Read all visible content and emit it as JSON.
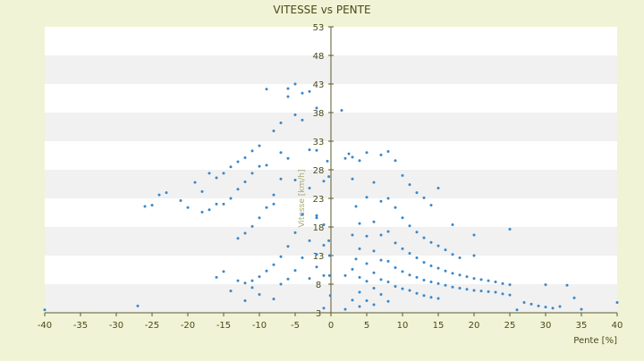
{
  "chart_data": {
    "type": "scatter",
    "title": "VITESSE vs PENTE",
    "xlabel": "Pente [%]",
    "ylabel": "Vitesse [km/h]",
    "xlim": [
      -40,
      40
    ],
    "ylim": [
      3,
      53
    ],
    "x_ticks": [
      -40,
      -35,
      -30,
      -25,
      -20,
      -15,
      -10,
      -5,
      0,
      5,
      10,
      15,
      20,
      25,
      30,
      35,
      40
    ],
    "y_ticks": [
      3,
      8,
      13,
      18,
      23,
      28,
      33,
      38,
      43,
      48,
      53
    ],
    "grid": "horizontal alternating bands",
    "legend": "none",
    "colors": {
      "background": "#f0f3d5",
      "plot_band_light": "#ffffff",
      "plot_band_dark": "#f1f1f1",
      "series": "#3a87c8",
      "text": "#4a4a18",
      "axis": "#5a5a2a"
    },
    "series": [
      {
        "points": [
          [
            -40,
            3.5
          ],
          [
            -27,
            4.2
          ],
          [
            -26,
            21.6
          ],
          [
            -25,
            21.8
          ],
          [
            -24,
            23.6
          ],
          [
            -23,
            24.0
          ],
          [
            -21,
            22.6
          ],
          [
            -20,
            21.4
          ],
          [
            -19,
            25.8
          ],
          [
            -18,
            24.2
          ],
          [
            -18,
            20.6
          ],
          [
            -17,
            27.4
          ],
          [
            -17,
            21.0
          ],
          [
            -16,
            26.6
          ],
          [
            -16,
            9.2
          ],
          [
            -15,
            10.2
          ],
          [
            -15,
            27.4
          ],
          [
            -14,
            28.5
          ],
          [
            -14,
            6.8
          ],
          [
            -13,
            29.4
          ],
          [
            -13,
            8.6
          ],
          [
            -12,
            30.1
          ],
          [
            -12,
            5.1
          ],
          [
            -11,
            31.3
          ],
          [
            -11,
            7.4
          ],
          [
            -10,
            32.2
          ],
          [
            -10,
            6.2
          ],
          [
            -9,
            42.1
          ],
          [
            -9,
            28.8
          ],
          [
            -8,
            34.8
          ],
          [
            -8,
            22.0
          ],
          [
            -8,
            5.4
          ],
          [
            -7,
            36.2
          ],
          [
            -7,
            31.0
          ],
          [
            -6,
            42.2
          ],
          [
            -6,
            40.8
          ],
          [
            -5,
            43.0
          ],
          [
            -5,
            37.6
          ],
          [
            -5,
            26.2
          ],
          [
            -4,
            41.4
          ],
          [
            -4,
            36.7
          ],
          [
            -3,
            41.7
          ],
          [
            -3,
            31.5
          ],
          [
            -2,
            38.8
          ],
          [
            -2,
            20.0
          ],
          [
            -2,
            13.2
          ],
          [
            -1,
            9.5
          ],
          [
            -1,
            3.8
          ],
          [
            -0.5,
            29.5
          ],
          [
            -0.3,
            26.8
          ],
          [
            -0.3,
            15.6
          ],
          [
            -0.2,
            13.0
          ],
          [
            -0.2,
            9.5
          ],
          [
            -0.1,
            6.0
          ],
          [
            -16,
            22.0
          ],
          [
            -15,
            22.0
          ],
          [
            -14,
            23.0
          ],
          [
            -13,
            24.6
          ],
          [
            -12,
            25.9
          ],
          [
            -11,
            27.4
          ],
          [
            -10,
            28.6
          ],
          [
            -13,
            16.0
          ],
          [
            -12,
            16.9
          ],
          [
            -11,
            18.1
          ],
          [
            -10,
            19.6
          ],
          [
            -9,
            21.4
          ],
          [
            -8,
            23.6
          ],
          [
            -7,
            26.4
          ],
          [
            -6,
            30.0
          ],
          [
            -12,
            8.2
          ],
          [
            -11,
            8.6
          ],
          [
            -10,
            9.3
          ],
          [
            -9,
            10.3
          ],
          [
            -8,
            11.4
          ],
          [
            -7,
            12.8
          ],
          [
            -6,
            14.6
          ],
          [
            -5,
            17.0
          ],
          [
            -4,
            20.2
          ],
          [
            -3,
            24.8
          ],
          [
            -2,
            31.4
          ],
          [
            -7,
            8.0
          ],
          [
            -6,
            8.9
          ],
          [
            -5,
            10.4
          ],
          [
            -4,
            12.6
          ],
          [
            -3,
            15.6
          ],
          [
            -2,
            19.6
          ],
          [
            -1,
            26.0
          ],
          [
            -3,
            9.0
          ],
          [
            -2,
            11.0
          ],
          [
            -1,
            14.8
          ],
          [
            -1,
            18.4
          ],
          [
            1.5,
            38.4
          ],
          [
            2,
            30.0
          ],
          [
            2,
            9.5
          ],
          [
            2,
            3.6
          ],
          [
            2.5,
            30.8
          ],
          [
            3,
            30.2
          ],
          [
            3,
            26.4
          ],
          [
            3,
            16.6
          ],
          [
            3,
            10.6
          ],
          [
            3,
            5.2
          ],
          [
            3.5,
            21.6
          ],
          [
            3.5,
            12.4
          ],
          [
            4,
            29.6
          ],
          [
            4,
            18.6
          ],
          [
            4,
            14.2
          ],
          [
            4,
            9.2
          ],
          [
            4,
            6.6
          ],
          [
            4,
            4.1
          ],
          [
            5,
            31.0
          ],
          [
            5,
            23.2
          ],
          [
            5,
            16.4
          ],
          [
            5,
            11.6
          ],
          [
            5,
            8.5
          ],
          [
            5,
            5.1
          ],
          [
            6,
            25.8
          ],
          [
            6,
            18.9
          ],
          [
            6,
            13.8
          ],
          [
            6,
            10.0
          ],
          [
            6,
            7.3
          ],
          [
            6,
            4.4
          ],
          [
            7,
            30.6
          ],
          [
            7,
            22.5
          ],
          [
            7,
            16.6
          ],
          [
            7,
            12.2
          ],
          [
            7,
            8.8
          ],
          [
            7,
            6.2
          ],
          [
            8,
            31.2
          ],
          [
            8,
            23.0
          ],
          [
            8,
            17.2
          ],
          [
            8,
            12.0
          ],
          [
            8,
            8.4
          ],
          [
            8,
            5.0
          ],
          [
            9,
            29.6
          ],
          [
            9,
            21.4
          ],
          [
            9,
            15.2
          ],
          [
            9,
            10.9
          ],
          [
            9,
            7.6
          ],
          [
            10,
            27.0
          ],
          [
            10,
            19.6
          ],
          [
            10,
            14.2
          ],
          [
            10,
            10.2
          ],
          [
            10,
            7.2
          ],
          [
            11,
            25.4
          ],
          [
            11,
            18.2
          ],
          [
            11,
            13.4
          ],
          [
            11,
            9.6
          ],
          [
            11,
            6.9
          ],
          [
            12,
            24.0
          ],
          [
            12,
            17.1
          ],
          [
            12,
            12.6
          ],
          [
            12,
            9.2
          ],
          [
            12,
            6.4
          ],
          [
            13,
            23.1
          ],
          [
            13,
            16.1
          ],
          [
            13,
            11.8
          ],
          [
            13,
            8.7
          ],
          [
            13,
            6.0
          ],
          [
            14,
            21.8
          ],
          [
            14,
            15.3
          ],
          [
            14,
            11.2
          ],
          [
            14,
            8.4
          ],
          [
            14,
            5.7
          ],
          [
            15,
            24.8
          ],
          [
            15,
            14.7
          ],
          [
            15,
            10.8
          ],
          [
            15,
            8.1
          ],
          [
            15,
            5.5
          ],
          [
            16,
            14.0
          ],
          [
            16,
            10.3
          ],
          [
            16,
            7.8
          ],
          [
            17,
            18.4
          ],
          [
            17,
            13.2
          ],
          [
            17,
            9.9
          ],
          [
            17,
            7.5
          ],
          [
            18,
            12.6
          ],
          [
            18,
            9.6
          ],
          [
            18,
            7.3
          ],
          [
            19,
            9.3
          ],
          [
            19,
            7.1
          ],
          [
            20,
            16.6
          ],
          [
            20,
            13.0
          ],
          [
            20,
            9.0
          ],
          [
            20,
            6.9
          ],
          [
            21,
            8.8
          ],
          [
            21,
            6.8
          ],
          [
            22,
            8.6
          ],
          [
            22,
            6.7
          ],
          [
            23,
            8.4
          ],
          [
            23,
            6.6
          ],
          [
            24,
            8.1
          ],
          [
            24,
            6.3
          ],
          [
            25,
            17.6
          ],
          [
            25,
            7.9
          ],
          [
            25,
            6.1
          ],
          [
            26,
            3.5
          ],
          [
            27,
            4.8
          ],
          [
            28,
            4.5
          ],
          [
            29,
            4.2
          ],
          [
            30,
            7.9
          ],
          [
            30,
            4.0
          ],
          [
            31,
            3.8
          ],
          [
            32,
            4.1
          ],
          [
            33,
            7.8
          ],
          [
            34,
            5.6
          ],
          [
            35,
            3.6
          ],
          [
            40,
            4.8
          ]
        ]
      }
    ]
  }
}
